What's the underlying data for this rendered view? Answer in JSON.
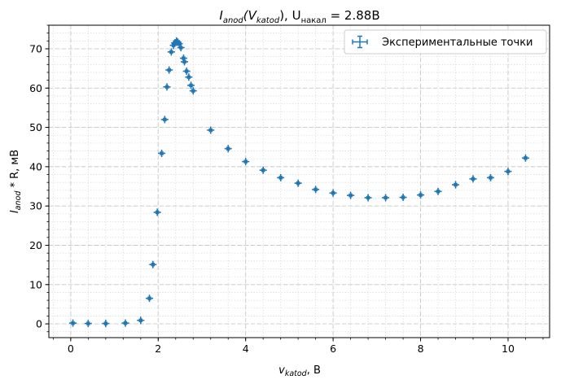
{
  "chart_data": {
    "type": "scatter",
    "title": {
      "main": "I",
      "main_sub": "anod",
      "paren_open": "(V",
      "paren_sub": "katod",
      "rest": "), U",
      "u_sub": "накал",
      "value": " = 2.88B"
    },
    "xlabel": {
      "main": "v",
      "sub": "katod",
      "unit": ", B"
    },
    "ylabel": {
      "main": "I",
      "sub": "anod",
      "unit": " * R, мВ"
    },
    "xlim": [
      -0.5,
      10.95
    ],
    "ylim": [
      -3.5,
      76
    ],
    "xticks": [
      0,
      2,
      4,
      6,
      8,
      10
    ],
    "yticks": [
      0,
      10,
      20,
      30,
      40,
      50,
      60,
      70
    ],
    "x_minor_step": 0.4,
    "y_minor_step": 2,
    "grid": true,
    "legend_position": "top-right",
    "marker_color": "#1f77b4",
    "series": [
      {
        "name": "Экспериментальные точки",
        "x": [
          0.05,
          0.4,
          0.8,
          1.25,
          1.6,
          1.8,
          1.88,
          1.98,
          2.08,
          2.15,
          2.2,
          2.25,
          2.3,
          2.35,
          2.38,
          2.42,
          2.45,
          2.48,
          2.52,
          2.58,
          2.6,
          2.65,
          2.7,
          2.75,
          2.8,
          3.2,
          3.6,
          4.0,
          4.4,
          4.8,
          5.2,
          5.6,
          6.0,
          6.4,
          6.8,
          7.2,
          7.6,
          8.0,
          8.4,
          8.8,
          9.2,
          9.6,
          10.0,
          10.4
        ],
        "y": [
          0.2,
          0.1,
          0.1,
          0.2,
          0.9,
          6.5,
          15.1,
          28.4,
          43.4,
          52.0,
          60.3,
          64.6,
          69.2,
          70.9,
          71.5,
          72.0,
          71.7,
          71.3,
          70.3,
          67.6,
          66.7,
          64.3,
          62.8,
          60.7,
          59.3,
          49.3,
          44.6,
          41.3,
          39.1,
          37.2,
          35.8,
          34.2,
          33.3,
          32.7,
          32.1,
          32.1,
          32.2,
          32.8,
          33.7,
          35.4,
          36.9,
          37.2,
          38.8,
          42.2
        ]
      }
    ]
  }
}
